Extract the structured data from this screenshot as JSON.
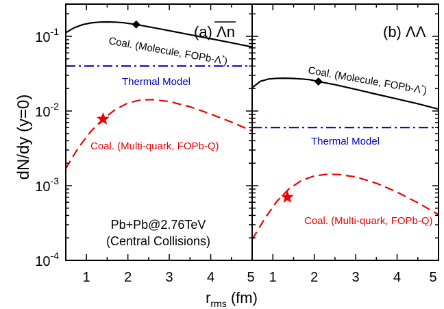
{
  "figure": {
    "ylabel": "dN/dy (y=0)",
    "xlabel_main": "r",
    "xlabel_sub": "rms",
    "xlabel_unit": " (fm)"
  },
  "chart_data": [
    {
      "type": "line",
      "panel_label": "(a) ",
      "particle_label": "Λn",
      "x_ticks": [
        "1",
        "2",
        "3",
        "4",
        "5"
      ],
      "y_ticks": [
        {
          "base": "10",
          "exp": "-4",
          "value": 0.0001
        },
        {
          "base": "10",
          "exp": "-3",
          "value": 0.001
        },
        {
          "base": "10",
          "exp": "-2",
          "value": 0.01
        },
        {
          "base": "10",
          "exp": "-1",
          "value": 0.1
        }
      ],
      "xlim": [
        0.5,
        5
      ],
      "ylim": [
        0.0001,
        0.27
      ],
      "y_scale": "log",
      "grid": false,
      "series": [
        {
          "name": "Coal. (Molecule, FOPb-Λ*)",
          "style": "solid",
          "color": "#000000",
          "x": [
            0.5,
            0.7,
            0.9,
            1.1,
            1.3,
            1.5,
            1.7,
            1.9,
            2.2,
            2.6,
            3.0,
            3.5,
            4.0,
            4.5,
            5.0
          ],
          "y": [
            0.112,
            0.13,
            0.143,
            0.151,
            0.155,
            0.156,
            0.155,
            0.152,
            0.144,
            0.131,
            0.119,
            0.105,
            0.093,
            0.082,
            0.072
          ]
        },
        {
          "name": "Thermal Model",
          "style": "dashdot",
          "color": "#0000cc",
          "x": [
            0.5,
            5.0
          ],
          "y": [
            0.04,
            0.04
          ]
        },
        {
          "name": "Coal. (Multi-quark, FOPb-Q)",
          "style": "dashed",
          "color": "#ee0000",
          "x": [
            0.5,
            0.8,
            1.1,
            1.4,
            1.7,
            2.0,
            2.3,
            2.6,
            3.0,
            3.5,
            4.0,
            4.5,
            5.0
          ],
          "y": [
            0.0017,
            0.0032,
            0.0053,
            0.0078,
            0.0105,
            0.0128,
            0.014,
            0.0142,
            0.0134,
            0.0114,
            0.0091,
            0.0071,
            0.0054
          ]
        }
      ],
      "markers": [
        {
          "shape": "diamond",
          "color": "#000000",
          "x": 2.2,
          "y": 0.144
        },
        {
          "shape": "star",
          "color": "#ee0000",
          "x": 1.4,
          "y": 0.0078
        }
      ],
      "annotations": {
        "molecule_main": "Coal. (Molecule, FOPb-Λ",
        "molecule_sup": "*",
        "molecule_close": ")",
        "thermal": "Thermal Model",
        "multiquark": "Coal. (Multi-quark, FOPb-Q)",
        "system_line1": "Pb+Pb@2.76TeV",
        "system_line2": "(Central Collisions)"
      }
    },
    {
      "type": "line",
      "panel_label": "(b) ΛΛ",
      "x_ticks": [
        "1",
        "2",
        "3",
        "4",
        "5"
      ],
      "xlim": [
        0.5,
        5
      ],
      "ylim": [
        0.0001,
        0.27
      ],
      "y_scale": "log",
      "grid": false,
      "series": [
        {
          "name": "Coal. (Molecule, FOPb-Λ*)",
          "style": "solid",
          "color": "#000000",
          "x": [
            0.5,
            0.7,
            0.9,
            1.1,
            1.3,
            1.5,
            1.7,
            1.9,
            2.1,
            2.5,
            3.0,
            3.5,
            4.0,
            4.5,
            5.0
          ],
          "y": [
            0.0205,
            0.025,
            0.0268,
            0.0274,
            0.0275,
            0.0273,
            0.0268,
            0.0262,
            0.0248,
            0.0225,
            0.0195,
            0.0168,
            0.0145,
            0.0125,
            0.0106
          ]
        },
        {
          "name": "Thermal Model",
          "style": "dashdot",
          "color": "#0000cc",
          "x": [
            0.5,
            5.0
          ],
          "y": [
            0.006,
            0.006
          ]
        },
        {
          "name": "Coal. (Multi-quark, FOPb-Q)",
          "style": "dashed",
          "color": "#ee0000",
          "x": [
            0.5,
            0.8,
            1.1,
            1.4,
            1.7,
            2.0,
            2.3,
            2.6,
            3.0,
            3.5,
            4.0,
            4.5,
            5.0
          ],
          "y": [
            0.00019,
            0.00036,
            0.00062,
            0.00092,
            0.00118,
            0.00135,
            0.00142,
            0.00141,
            0.00131,
            0.00108,
            0.00082,
            0.00059,
            0.00041
          ]
        }
      ],
      "markers": [
        {
          "shape": "diamond",
          "color": "#000000",
          "x": 2.1,
          "y": 0.0248
        },
        {
          "shape": "star",
          "color": "#ee0000",
          "x": 1.35,
          "y": 0.0007
        }
      ],
      "annotations": {
        "molecule_main": "Coal. (Molecule, FOPb-Λ",
        "molecule_sup": "*",
        "molecule_close": ")",
        "thermal": "Thermal Model",
        "multiquark": "Coal. (Multi-quark, FOPb-Q)"
      }
    }
  ]
}
